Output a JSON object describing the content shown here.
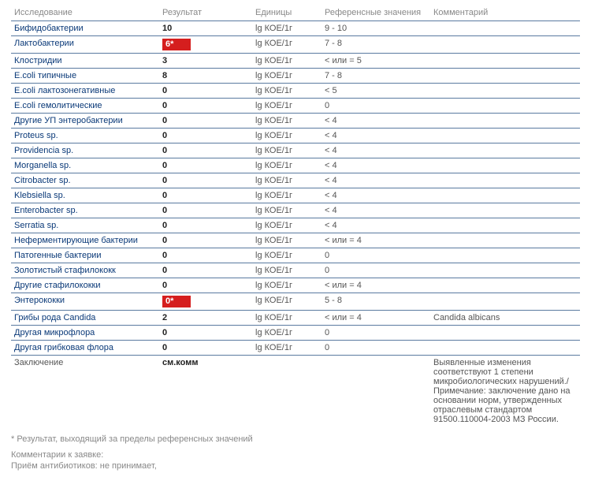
{
  "headers": {
    "name": "Исследование",
    "result": "Результат",
    "units": "Единицы",
    "ref": "Референсные значения",
    "comment": "Комментарий"
  },
  "rows": [
    {
      "name": "Бифидобактерии",
      "result": "10",
      "flag": false,
      "units": "lg КОЕ/1г",
      "ref": "9 - 10",
      "comment": ""
    },
    {
      "name": "Лактобактерии",
      "result": "6*",
      "flag": true,
      "units": "lg КОЕ/1г",
      "ref": "7 - 8",
      "comment": ""
    },
    {
      "name": "Клостридии",
      "result": "3",
      "flag": false,
      "units": "lg КОЕ/1г",
      "ref": "< или = 5",
      "comment": ""
    },
    {
      "name": "E.coli типичные",
      "result": "8",
      "flag": false,
      "units": "lg КОЕ/1г",
      "ref": "7 - 8",
      "comment": ""
    },
    {
      "name": "E.coli лактозонегативные",
      "result": "0",
      "flag": false,
      "units": "lg КОЕ/1г",
      "ref": "< 5",
      "comment": ""
    },
    {
      "name": "E.coli гемолитические",
      "result": "0",
      "flag": false,
      "units": "lg КОЕ/1г",
      "ref": "0",
      "comment": ""
    },
    {
      "name": "Другие УП энтеробактерии",
      "result": "0",
      "flag": false,
      "units": "lg КОЕ/1г",
      "ref": "< 4",
      "comment": ""
    },
    {
      "name": "Proteus sp.",
      "result": "0",
      "flag": false,
      "units": "lg КОЕ/1г",
      "ref": "< 4",
      "comment": ""
    },
    {
      "name": "Providencia sp.",
      "result": "0",
      "flag": false,
      "units": "lg КОЕ/1г",
      "ref": "< 4",
      "comment": ""
    },
    {
      "name": "Morganella sp.",
      "result": "0",
      "flag": false,
      "units": "lg КОЕ/1г",
      "ref": "< 4",
      "comment": ""
    },
    {
      "name": "Citrobacter sp.",
      "result": "0",
      "flag": false,
      "units": "lg КОЕ/1г",
      "ref": "<  4",
      "comment": ""
    },
    {
      "name": "Klebsiella sp.",
      "result": "0",
      "flag": false,
      "units": "lg КОЕ/1г",
      "ref": "< 4",
      "comment": ""
    },
    {
      "name": "Enterobacter sp.",
      "result": "0",
      "flag": false,
      "units": "lg КОЕ/1г",
      "ref": "< 4",
      "comment": ""
    },
    {
      "name": "Serratia sp.",
      "result": "0",
      "flag": false,
      "units": "lg КОЕ/1г",
      "ref": "< 4",
      "comment": ""
    },
    {
      "name": "Неферментирующие бактерии",
      "result": "0",
      "flag": false,
      "units": "lg КОЕ/1г",
      "ref": "< или = 4",
      "comment": ""
    },
    {
      "name": "Патогенные бактерии",
      "result": "0",
      "flag": false,
      "units": "lg КОЕ/1г",
      "ref": "0",
      "comment": ""
    },
    {
      "name": "Золотистый стафилококк",
      "result": "0",
      "flag": false,
      "units": "lg КОЕ/1г",
      "ref": "0",
      "comment": ""
    },
    {
      "name": "Другие стафилококки",
      "result": "0",
      "flag": false,
      "units": "lg КОЕ/1г",
      "ref": "< или = 4",
      "comment": ""
    },
    {
      "name": "Энтерококки",
      "result": "0*",
      "flag": true,
      "units": "lg КОЕ/1г",
      "ref": "5 - 8",
      "comment": ""
    },
    {
      "name": "Грибы рода Candida",
      "result": "2",
      "flag": false,
      "units": "lg КОЕ/1г",
      "ref": "< или = 4",
      "comment": "Candida albicans"
    },
    {
      "name": "Другая микрофлора",
      "result": "0",
      "flag": false,
      "units": "lg КОЕ/1г",
      "ref": "0",
      "comment": ""
    },
    {
      "name": "Другая грибковая флора",
      "result": "0",
      "flag": false,
      "units": "lg КОЕ/1г",
      "ref": "0",
      "comment": ""
    }
  ],
  "conclusion": {
    "name": "Заключение",
    "result": "см.комм",
    "comment": "Выявленные изменения соответствуют 1 степени микробиологических нарушений./ Примечание: заключение дано на основании норм, утвержденных отраслевым стандартом 91500.110004-2003 МЗ России."
  },
  "footnote": "* Результат, выходящий за пределы референсных значений",
  "comments_label": "Комментарии к заявке:",
  "comments_text": "Приём антибиотиков: не принимает,"
}
